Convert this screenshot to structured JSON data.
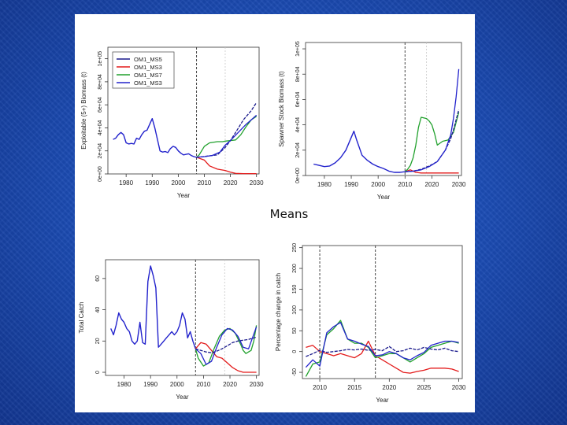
{
  "slide": {
    "caption": "Means",
    "colors": {
      "background": "#1d4fb8",
      "panel": "#ffffff"
    }
  },
  "series_names": [
    "OM1_MS5",
    "OM1_MS3",
    "OM1_MS7",
    "OM1_MS3"
  ],
  "series_colors": [
    "#1a1a8c",
    "#e31b1b",
    "#21a12d",
    "#2222cc"
  ],
  "chart_data": [
    {
      "id": "exploitable",
      "type": "line",
      "xlabel": "Year",
      "ylabel": "Exploitable (5+) Biomass (t)",
      "xlim": [
        1973,
        2031
      ],
      "ylim": [
        0,
        110000.0
      ],
      "xticks": [
        1980,
        1990,
        2000,
        2010,
        2020,
        2030
      ],
      "xtick_labels": [
        "1980",
        "1990",
        "2000",
        "2010",
        "2020",
        "2030"
      ],
      "yticks": [
        0,
        20000,
        40000,
        60000,
        80000,
        100000
      ],
      "ytick_labels": [
        "0e+00",
        "2e+04",
        "4e+04",
        "6e+04",
        "8e+04",
        "1e+05"
      ],
      "vlines": [
        2007
      ],
      "vlines_light": [
        2018
      ],
      "legend": {
        "position": "top-left",
        "entries": [
          "OM1_MS5",
          "OM1_MS3",
          "OM1_MS7",
          "OM1_MS3"
        ]
      },
      "history": {
        "x": [
          1975,
          1976,
          1977,
          1978,
          1979,
          1980,
          1981,
          1982,
          1983,
          1984,
          1985,
          1986,
          1987,
          1988,
          1989,
          1990,
          1991,
          1992,
          1993,
          1994,
          1995,
          1996,
          1997,
          1998,
          1999,
          2000,
          2001,
          2002,
          2003,
          2004,
          2005,
          2006,
          2007
        ],
        "y": [
          30000,
          31000,
          34000,
          36000,
          34000,
          27000,
          26000,
          26500,
          26000,
          31000,
          30000,
          34000,
          37000,
          38000,
          43000,
          48000,
          40000,
          30000,
          20000,
          19000,
          19500,
          18500,
          22000,
          24000,
          23000,
          20000,
          18000,
          16500,
          17000,
          17500,
          16000,
          15000,
          14500
        ]
      },
      "series": [
        {
          "name": "OM1_MS5",
          "x": [
            2007,
            2010,
            2015,
            2018,
            2020,
            2022,
            2025,
            2028,
            2030
          ],
          "values": [
            14500,
            15200,
            16500,
            23000,
            29000,
            36000,
            47000,
            55000,
            62000
          ]
        },
        {
          "name": "OM1_MS3",
          "x": [
            2007,
            2010,
            2012,
            2015,
            2018,
            2020,
            2022,
            2025,
            2030
          ],
          "values": [
            14500,
            12000,
            7000,
            4200,
            3000,
            1500,
            500,
            300,
            300
          ]
        },
        {
          "name": "OM1_MS7",
          "x": [
            2007,
            2008,
            2010,
            2012,
            2015,
            2017,
            2018,
            2020,
            2022,
            2024,
            2026,
            2028,
            2030
          ],
          "values": [
            14500,
            16500,
            24000,
            27000,
            28000,
            28000,
            28500,
            29000,
            29500,
            34000,
            41000,
            47000,
            50000
          ]
        },
        {
          "name": "OM1_MS3",
          "x": [
            2007,
            2010,
            2013,
            2016,
            2018,
            2020,
            2023,
            2026,
            2028,
            2030
          ],
          "values": [
            14500,
            15000,
            16000,
            19000,
            25000,
            29000,
            36000,
            43000,
            47000,
            51000
          ]
        }
      ]
    },
    {
      "id": "spawning",
      "type": "line",
      "xlabel": "Year",
      "ylabel": "Spawner Stock Biomass (t)",
      "xlim": [
        1973,
        2031
      ],
      "ylim": [
        0,
        105000.0
      ],
      "xticks": [
        1980,
        1990,
        2000,
        2010,
        2020,
        2030
      ],
      "xtick_labels": [
        "1980",
        "1990",
        "2000",
        "2010",
        "2020",
        "2030"
      ],
      "yticks": [
        0,
        20000,
        40000,
        60000,
        80000,
        100000
      ],
      "ytick_labels": [
        "0e+00",
        "2e+04",
        "4e+04",
        "6e+04",
        "8e+04",
        "1e+05"
      ],
      "vlines": [
        2010
      ],
      "vlines_light": [
        2018
      ],
      "history": {
        "x": [
          1976,
          1978,
          1980,
          1982,
          1984,
          1986,
          1988,
          1990,
          1991,
          1992,
          1994,
          1996,
          1998,
          2000,
          2002,
          2004,
          2006,
          2008,
          2010
        ],
        "y": [
          9000,
          8000,
          7000,
          7500,
          10000,
          14000,
          20000,
          30000,
          35000,
          28000,
          16000,
          12000,
          9000,
          7000,
          5500,
          3500,
          2500,
          2500,
          3000
        ]
      },
      "series": [
        {
          "name": "OM1_MS5",
          "x": [
            2010,
            2013,
            2016,
            2019,
            2022,
            2025,
            2027,
            2028,
            2030
          ],
          "values": [
            3000,
            3500,
            5000,
            7500,
            11000,
            20000,
            29000,
            36000,
            52000
          ]
        },
        {
          "name": "OM1_MS3",
          "x": [
            2010,
            2012,
            2014,
            2016,
            2020,
            2025,
            2030
          ],
          "values": [
            3000,
            4500,
            2500,
            2000,
            2000,
            2000,
            2000
          ]
        },
        {
          "name": "OM1_MS7",
          "x": [
            2010,
            2011,
            2012,
            2013,
            2014,
            2015,
            2016,
            2018,
            2019,
            2020,
            2021,
            2022,
            2024,
            2026,
            2028,
            2030
          ],
          "values": [
            3000,
            5000,
            8000,
            14000,
            24000,
            38000,
            46000,
            45000,
            43000,
            40000,
            33000,
            24000,
            27000,
            28000,
            34000,
            50000
          ]
        },
        {
          "name": "OM1_MS3",
          "x": [
            2010,
            2013,
            2016,
            2019,
            2022,
            2025,
            2027,
            2028,
            2029,
            2030
          ],
          "values": [
            3000,
            3400,
            4500,
            7000,
            11000,
            20000,
            32000,
            45000,
            62000,
            84000
          ]
        }
      ]
    },
    {
      "id": "catch",
      "type": "line",
      "xlabel": "Year",
      "ylabel": "Total Catch",
      "xlim": [
        1973,
        2031
      ],
      "ylim": [
        -2,
        72
      ],
      "xticks": [
        1980,
        1990,
        2000,
        2010,
        2020,
        2030
      ],
      "xtick_labels": [
        "1980",
        "1990",
        "2000",
        "2010",
        "2020",
        "2030"
      ],
      "yticks": [
        0,
        20,
        40,
        60
      ],
      "ytick_labels": [
        "0",
        "20",
        "40",
        "60"
      ],
      "vlines": [
        2007
      ],
      "vlines_light": [
        2018
      ],
      "history": {
        "x": [
          1975,
          1976,
          1977,
          1978,
          1979,
          1980,
          1981,
          1982,
          1983,
          1984,
          1985,
          1986,
          1987,
          1988,
          1989,
          1990,
          1991,
          1992,
          1993,
          1994,
          1995,
          1996,
          1997,
          1998,
          1999,
          2000,
          2001,
          2002,
          2003,
          2004,
          2005,
          2006,
          2007
        ],
        "y": [
          28,
          24,
          30,
          38,
          34,
          32,
          28,
          26,
          20,
          18,
          20,
          32,
          19,
          18,
          58,
          68,
          62,
          54,
          16,
          18,
          20,
          22,
          24,
          26,
          24,
          26,
          30,
          38,
          34,
          22,
          26,
          20,
          15
        ]
      },
      "series": [
        {
          "name": "OM1_MS5",
          "x": [
            2007,
            2009,
            2011,
            2013,
            2015,
            2017,
            2019,
            2021,
            2023,
            2025,
            2027,
            2030
          ],
          "values": [
            15,
            14,
            13,
            12.5,
            13.5,
            15,
            17,
            19,
            20,
            20.5,
            21,
            22.5
          ]
        },
        {
          "name": "OM1_MS3",
          "x": [
            2007,
            2009,
            2011,
            2013,
            2015,
            2017,
            2019,
            2021,
            2023,
            2025,
            2030
          ],
          "values": [
            15,
            19,
            18,
            14,
            10,
            9,
            6,
            3,
            1,
            0,
            0
          ]
        },
        {
          "name": "OM1_MS7",
          "x": [
            2007,
            2008,
            2010,
            2012,
            2014,
            2016,
            2018,
            2020,
            2022,
            2024,
            2025,
            2026,
            2028,
            2029,
            2030
          ],
          "values": [
            15,
            9,
            4,
            6,
            15,
            23,
            27,
            28,
            25,
            18,
            14,
            12,
            14,
            20,
            30
          ]
        },
        {
          "name": "OM1_MS3",
          "x": [
            2007,
            2009,
            2011,
            2013,
            2015,
            2017,
            2019,
            2021,
            2023,
            2025,
            2027,
            2030
          ],
          "values": [
            15,
            12,
            5,
            7,
            16,
            24,
            28,
            27,
            23,
            16,
            15,
            29
          ]
        }
      ]
    },
    {
      "id": "pct_change",
      "type": "line",
      "xlabel": "Year",
      "ylabel": "Percentage change in catch",
      "xlim": [
        2007.5,
        2030.5
      ],
      "ylim": [
        -65,
        255
      ],
      "xticks": [
        2010,
        2015,
        2020,
        2025,
        2030
      ],
      "xtick_labels": [
        "2010",
        "2015",
        "2020",
        "2025",
        "2030"
      ],
      "yticks": [
        -50,
        0,
        50,
        100,
        150,
        200,
        250
      ],
      "ytick_labels": [
        "-50",
        "0",
        "50",
        "100",
        "150",
        "200",
        "250"
      ],
      "vlines": [
        2010,
        2018
      ],
      "vlines_light": [],
      "series": [
        {
          "name": "OM1_MS5",
          "x": [
            2008,
            2009,
            2010,
            2011,
            2012,
            2013,
            2014,
            2015,
            2016,
            2017,
            2018,
            2019,
            2020,
            2021,
            2022,
            2023,
            2024,
            2025,
            2026,
            2027,
            2028,
            2029,
            2030
          ],
          "values": [
            -12,
            -5,
            3,
            -2,
            0,
            2,
            5,
            4,
            6,
            3,
            5,
            2,
            12,
            0,
            2,
            8,
            4,
            10,
            6,
            4,
            8,
            2,
            0
          ]
        },
        {
          "name": "OM1_MS3",
          "x": [
            2008,
            2009,
            2010,
            2011,
            2012,
            2013,
            2014,
            2015,
            2016,
            2017,
            2018,
            2019,
            2020,
            2021,
            2022,
            2023,
            2024,
            2025,
            2026,
            2027,
            2028,
            2029,
            2030
          ],
          "values": [
            10,
            15,
            0,
            -5,
            -10,
            -5,
            -10,
            -15,
            -5,
            25,
            -10,
            -20,
            -30,
            -40,
            -50,
            -52,
            -48,
            -45,
            -40,
            -40,
            -40,
            -42,
            -48
          ]
        },
        {
          "name": "OM1_MS7",
          "x": [
            2008,
            2009,
            2010,
            2011,
            2012,
            2013,
            2014,
            2015,
            2016,
            2017,
            2018,
            2019,
            2020,
            2021,
            2022,
            2023,
            2024,
            2025,
            2026,
            2027,
            2028,
            2029,
            2030
          ],
          "values": [
            -60,
            -30,
            -25,
            40,
            55,
            75,
            30,
            20,
            20,
            10,
            -15,
            -10,
            -5,
            -5,
            -15,
            -25,
            -15,
            -5,
            10,
            15,
            20,
            25,
            20
          ]
        },
        {
          "name": "OM1_MS3",
          "x": [
            2008,
            2009,
            2010,
            2011,
            2012,
            2013,
            2014,
            2015,
            2016,
            2017,
            2018,
            2019,
            2020,
            2021,
            2022,
            2023,
            2024,
            2025,
            2026,
            2027,
            2028,
            2029,
            2030
          ],
          "values": [
            -38,
            -20,
            -35,
            45,
            60,
            70,
            30,
            25,
            18,
            12,
            -10,
            -8,
            0,
            -5,
            -15,
            -20,
            -10,
            -2,
            15,
            20,
            25,
            25,
            22
          ]
        }
      ]
    }
  ]
}
